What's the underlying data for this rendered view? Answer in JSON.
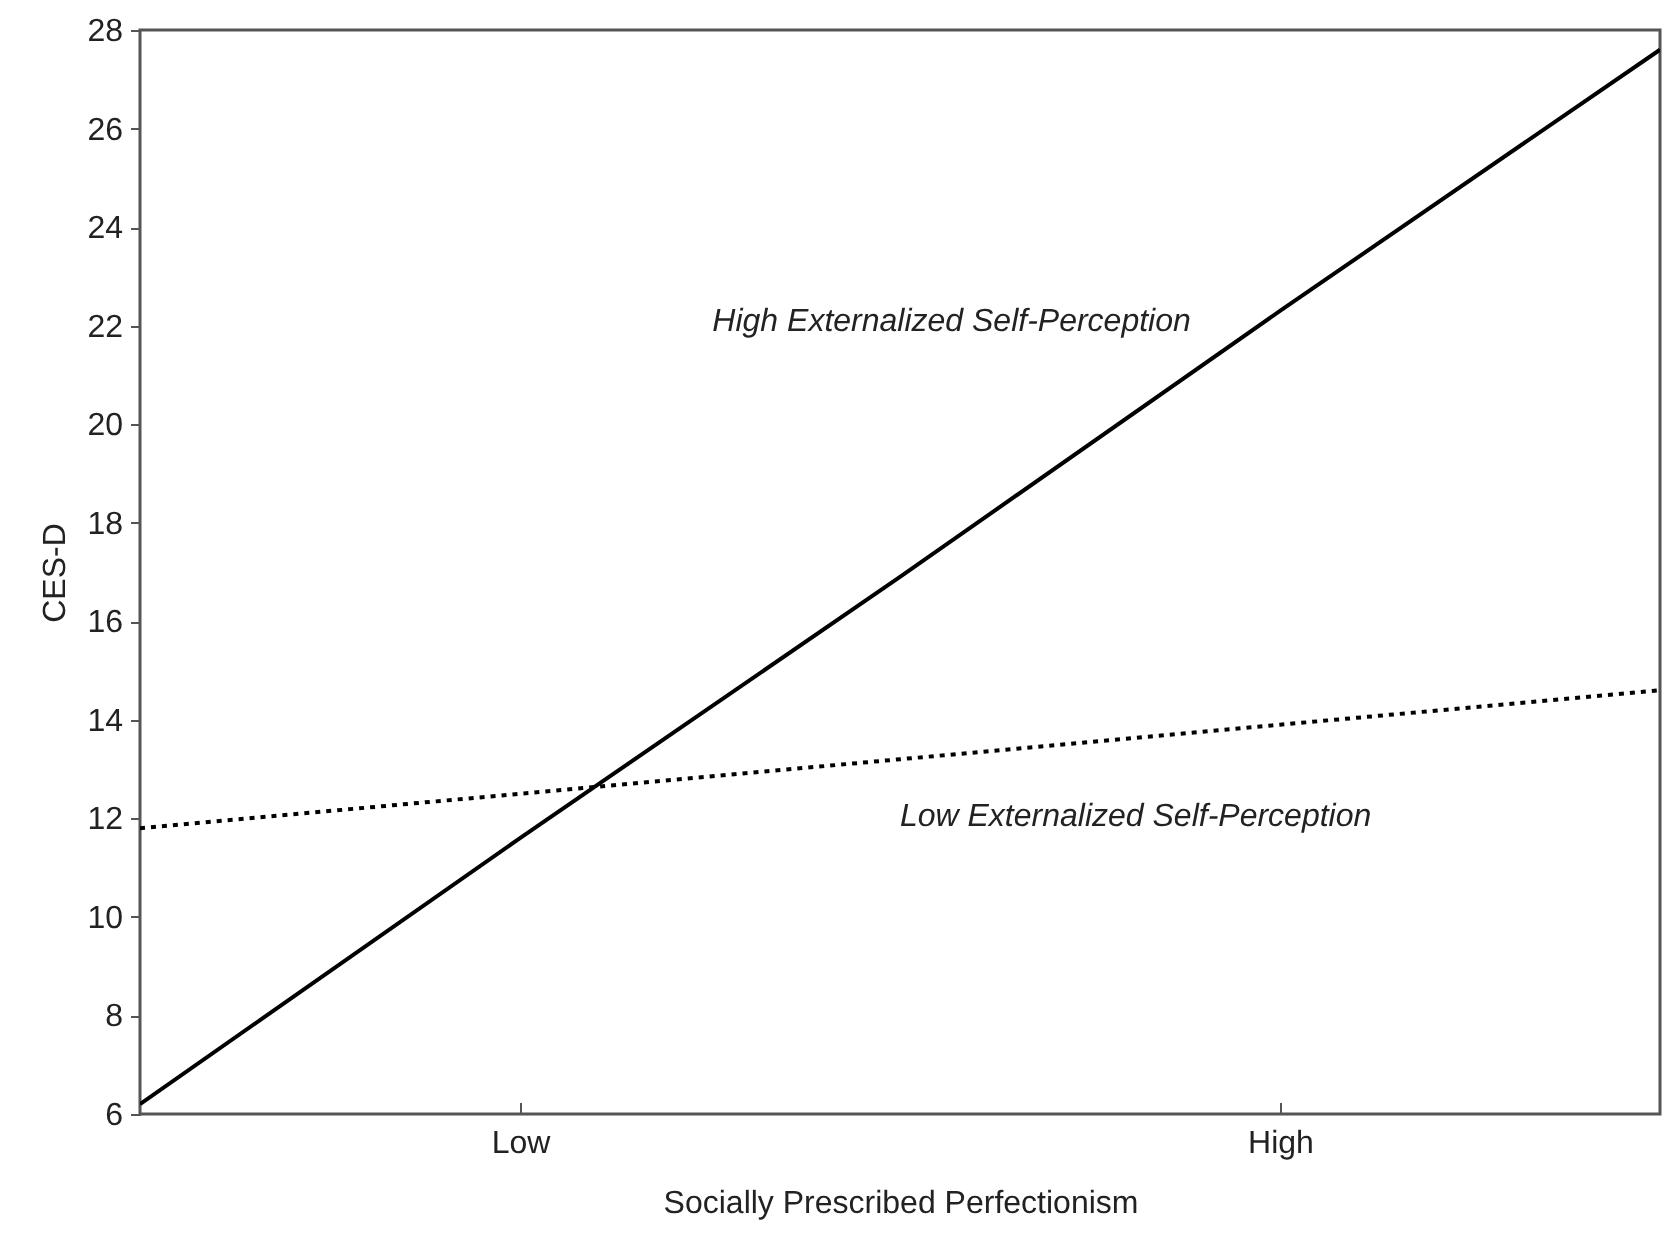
{
  "chart_data": {
    "type": "line",
    "xlabel": "Socially Prescribed Perfectionism",
    "ylabel": "CES-D",
    "categories": [
      null,
      "Low",
      null,
      "High",
      null
    ],
    "series": [
      {
        "name": "High Externalized Self-Perception",
        "color": "#000000",
        "line_style": "solid",
        "values": [
          6.2,
          11.6,
          16.9,
          22.3,
          27.6
        ]
      },
      {
        "name": "Low Externalized Self-Perception",
        "color": "#000000",
        "line_style": "dotted",
        "values": [
          11.8,
          12.5,
          13.2,
          13.9,
          14.6
        ]
      }
    ],
    "ylim": [
      6,
      28
    ],
    "yticks": [
      6,
      8,
      10,
      12,
      14,
      16,
      18,
      20,
      22,
      24,
      26,
      28
    ],
    "grid": false,
    "marker": "none"
  }
}
